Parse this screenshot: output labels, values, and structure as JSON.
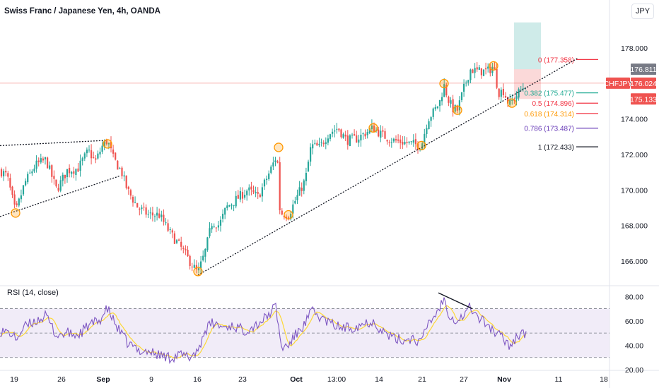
{
  "header": {
    "title": "Swiss Franc / Japanese Yen, 4h, OANDA",
    "currency_button": "JPY"
  },
  "colors": {
    "up": "#26a69a",
    "down": "#ef5350",
    "rsi": "#7e57c2",
    "rsi_ma": "#fdd835",
    "rsi_band": "#ede7f6",
    "fib_red": "#f23645",
    "fib_teal": "#22ab94",
    "fib_orange": "#ff9800",
    "fib_purple": "#673ab7",
    "fib_black": "#131722",
    "circle": "#ff9800"
  },
  "chart_data": {
    "type": "candlestick",
    "symbol": "CHFJPY",
    "ylim": [
      164.6,
      179.6
    ],
    "price_ticks": [
      "178.000",
      "176.000",
      "174.000",
      "172.000",
      "170.000",
      "168.000",
      "166.000"
    ],
    "price_tick_values": [
      178,
      176,
      174,
      172,
      170,
      168,
      166
    ],
    "x_ticks": [
      "19",
      "26",
      "Sep",
      "9",
      "16",
      "23",
      "Oct",
      "13:00",
      "14",
      "21",
      "27",
      "Nov",
      "11",
      "18"
    ],
    "last_price": {
      "label": "CHFJPY",
      "value": "176.024"
    },
    "price_tags": [
      {
        "value": "176.811"
      },
      {
        "value": "175.133"
      }
    ],
    "close_path": [
      [
        0,
        171.1
      ],
      [
        10,
        170.8
      ],
      [
        22,
        168.7
      ],
      [
        35,
        170.4
      ],
      [
        50,
        171.4
      ],
      [
        65,
        171.7
      ],
      [
        80,
        170.0
      ],
      [
        95,
        171.1
      ],
      [
        110,
        171.2
      ],
      [
        125,
        172.2
      ],
      [
        135,
        171.6
      ],
      [
        145,
        172.5
      ],
      [
        152,
        172.8
      ],
      [
        160,
        171.8
      ],
      [
        172,
        171.0
      ],
      [
        180,
        170.0
      ],
      [
        195,
        169.0
      ],
      [
        210,
        168.6
      ],
      [
        225,
        168.6
      ],
      [
        240,
        167.6
      ],
      [
        255,
        166.8
      ],
      [
        268,
        166.0
      ],
      [
        280,
        165.3
      ],
      [
        290,
        166.5
      ],
      [
        300,
        168.2
      ],
      [
        310,
        168.0
      ],
      [
        320,
        169.0
      ],
      [
        335,
        169.5
      ],
      [
        350,
        170.0
      ],
      [
        365,
        169.6
      ],
      [
        380,
        170.9
      ],
      [
        392,
        172.0
      ],
      [
        396,
        168.7
      ],
      [
        408,
        168.6
      ],
      [
        420,
        169.6
      ],
      [
        432,
        170.6
      ],
      [
        440,
        172.5
      ],
      [
        452,
        172.4
      ],
      [
        465,
        173.2
      ],
      [
        478,
        173.5
      ],
      [
        490,
        172.8
      ],
      [
        505,
        172.9
      ],
      [
        520,
        173.3
      ],
      [
        528,
        173.5
      ],
      [
        540,
        173.1
      ],
      [
        555,
        172.8
      ],
      [
        570,
        172.7
      ],
      [
        582,
        172.6
      ],
      [
        596,
        172.5
      ],
      [
        605,
        174.0
      ],
      [
        615,
        174.5
      ],
      [
        622,
        175.0
      ],
      [
        628,
        175.9
      ],
      [
        635,
        175.0
      ],
      [
        640,
        174.6
      ],
      [
        647,
        174.5
      ],
      [
        655,
        175.6
      ],
      [
        665,
        176.8
      ],
      [
        675,
        176.7
      ],
      [
        690,
        176.7
      ],
      [
        698,
        177.0
      ],
      [
        705,
        175.5
      ],
      [
        712,
        175.6
      ],
      [
        720,
        174.8
      ],
      [
        730,
        175.3
      ],
      [
        740,
        175.8
      ],
      [
        744,
        176.0
      ]
    ],
    "fib_levels": [
      {
        "label": "0 (177.358)",
        "value": 177.358
      },
      {
        "label": "0.382 (175.477)",
        "value": 175.477
      },
      {
        "label": "0.5 (174.896)",
        "value": 174.896
      },
      {
        "label": "0.618 (174.314)",
        "value": 174.314
      },
      {
        "label": "0.786 (173.487)",
        "value": 173.487
      },
      {
        "label": "1 (172.433)",
        "value": 172.433
      }
    ],
    "rsi": {
      "label": "RSI (14, close)",
      "ylim": [
        20,
        90
      ],
      "ticks": [
        "80.00",
        "60.00",
        "40.00",
        "20.00"
      ],
      "tick_values": [
        80,
        60,
        40,
        20
      ],
      "upper": 70,
      "middle": 50,
      "lower": 30,
      "path": [
        [
          0,
          52
        ],
        [
          15,
          50
        ],
        [
          22,
          45
        ],
        [
          35,
          55
        ],
        [
          50,
          60
        ],
        [
          65,
          64
        ],
        [
          80,
          48
        ],
        [
          95,
          50
        ],
        [
          110,
          48
        ],
        [
          125,
          56
        ],
        [
          140,
          60
        ],
        [
          152,
          70
        ],
        [
          165,
          55
        ],
        [
          180,
          42
        ],
        [
          195,
          36
        ],
        [
          210,
          35
        ],
        [
          225,
          32
        ],
        [
          240,
          30
        ],
        [
          255,
          32
        ],
        [
          268,
          30
        ],
        [
          280,
          36
        ],
        [
          290,
          52
        ],
        [
          300,
          58
        ],
        [
          315,
          55
        ],
        [
          330,
          56
        ],
        [
          345,
          52
        ],
        [
          360,
          56
        ],
        [
          375,
          62
        ],
        [
          390,
          72
        ],
        [
          398,
          38
        ],
        [
          408,
          40
        ],
        [
          420,
          50
        ],
        [
          432,
          58
        ],
        [
          440,
          68
        ],
        [
          455,
          62
        ],
        [
          470,
          57
        ],
        [
          485,
          54
        ],
        [
          500,
          55
        ],
        [
          515,
          58
        ],
        [
          528,
          60
        ],
        [
          540,
          52
        ],
        [
          555,
          46
        ],
        [
          570,
          44
        ],
        [
          582,
          46
        ],
        [
          596,
          42
        ],
        [
          605,
          58
        ],
        [
          615,
          64
        ],
        [
          622,
          72
        ],
        [
          628,
          78
        ],
        [
          635,
          66
        ],
        [
          645,
          60
        ],
        [
          655,
          64
        ],
        [
          665,
          72
        ],
        [
          675,
          63
        ],
        [
          690,
          57
        ],
        [
          700,
          50
        ],
        [
          712,
          46
        ],
        [
          720,
          40
        ],
        [
          730,
          46
        ],
        [
          738,
          52
        ],
        [
          744,
          48
        ]
      ]
    }
  }
}
